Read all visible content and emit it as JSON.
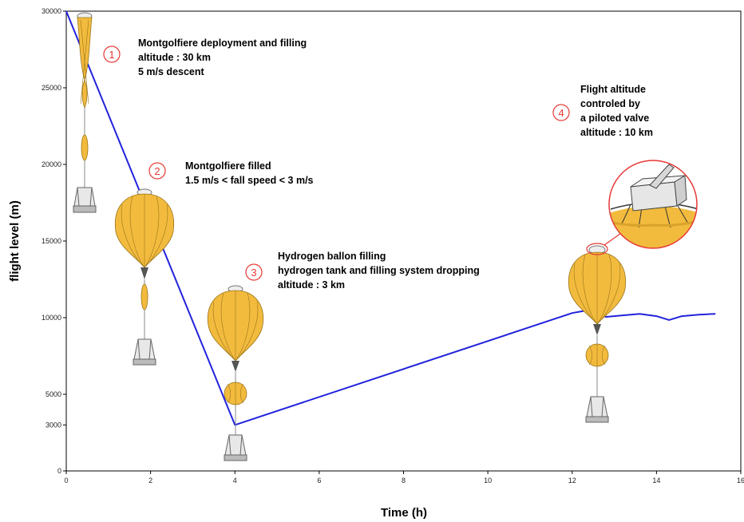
{
  "chart_data": {
    "type": "line",
    "title": "",
    "xlabel": "Time (h)",
    "ylabel": "flight level (m)",
    "xlim": [
      0,
      16
    ],
    "ylim": [
      0,
      30000
    ],
    "xticks": [
      0,
      2,
      4,
      6,
      8,
      10,
      12,
      14,
      16
    ],
    "yticks": [
      0,
      3000,
      5000,
      10000,
      15000,
      20000,
      25000,
      30000
    ],
    "grid": false,
    "legend": "none",
    "series": [
      {
        "color": "#2222dd",
        "x": [
          0,
          4,
          12,
          12.3,
          12.6,
          12.8,
          13.2,
          13.6,
          14.0,
          14.3,
          14.6,
          15.0,
          15.4
        ],
        "y": [
          30000,
          3000,
          10300,
          10450,
          10400,
          10050,
          10150,
          10250,
          10100,
          9850,
          10100,
          10200,
          10250
        ]
      }
    ],
    "annotations": [
      {
        "number": "1",
        "lines": [
          "Montgolfiere deployment and filling",
          "altitude : 30 km",
          "5 m/s descent"
        ]
      },
      {
        "number": "2",
        "lines": [
          "Montgolfiere filled",
          "1.5 m/s < fall speed < 3 m/s"
        ]
      },
      {
        "number": "3",
        "lines": [
          "Hydrogen ballon filling",
          "hydrogen tank and filling system dropping",
          "altitude : 3 km"
        ]
      },
      {
        "number": "4",
        "lines": [
          "Flight altitude",
          "controled by",
          "a piloted valve",
          "altitude : 10 km"
        ]
      }
    ]
  },
  "colors": {
    "line": "#2222dd",
    "balloon_fill": "#f2bb3e",
    "balloon_stroke": "#9a7418",
    "step_circle": "#e53935"
  },
  "illustrations": [
    "deploying-montgolfiere-icon",
    "filled-montgolfiere-icon",
    "hydrogen-balloon-icon",
    "piloted-valve-balloon-icon",
    "valve-closeup-icon"
  ]
}
